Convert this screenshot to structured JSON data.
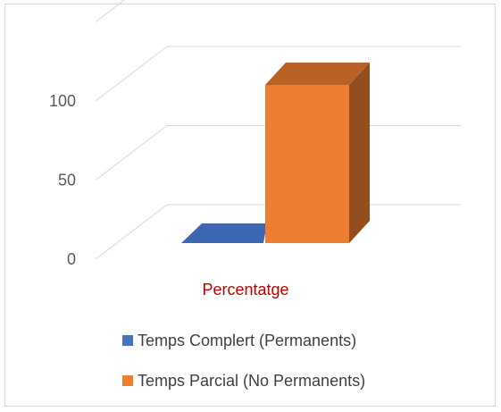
{
  "chart_data": {
    "type": "bar",
    "categories": [
      "Percentatge"
    ],
    "series": [
      {
        "name": "Temps Complert (Permanents)",
        "values": [
          0
        ],
        "color": "#4472C4"
      },
      {
        "name": "Temps Parcial (No Permanents)",
        "values": [
          100
        ],
        "color": "#ED7D31"
      }
    ],
    "y_ticks": [
      "0",
      "50",
      "100"
    ],
    "ylim": [
      0,
      150
    ],
    "category_label_color": "#C00000",
    "legend_position": "bottom",
    "grid": true,
    "three_d": true
  }
}
